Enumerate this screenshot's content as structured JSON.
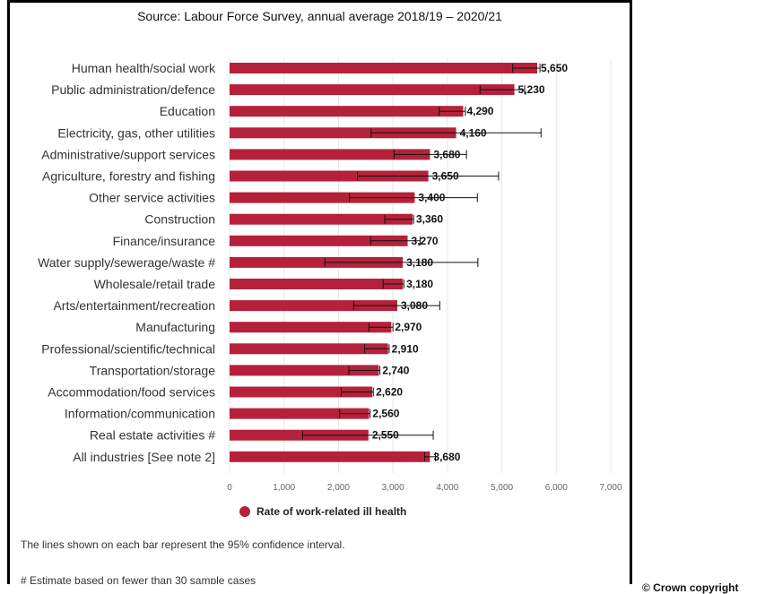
{
  "source_text": "Source: Labour Force Survey, annual average 2018/19 – 2020/21",
  "chart_data": {
    "type": "bar",
    "orientation": "horizontal",
    "categories": [
      "Human health/social work",
      "Public administration/defence",
      "Education",
      "Electricity, gas, other utilities",
      "Administrative/support services",
      "Agriculture, forestry and fishing",
      "Other service activities",
      "Construction",
      "Finance/insurance",
      "Water supply/sewerage/waste #",
      "Wholesale/retail trade",
      "Arts/entertainment/recreation",
      "Manufacturing",
      "Professional/scientific/technical",
      "Transportation/storage",
      "Accommodation/food services",
      "Information/communication",
      "Real estate activities #",
      "All industries [See note 2]"
    ],
    "series": [
      {
        "name": "Rate of work-related ill health",
        "color": "#b5213a",
        "values": [
          5650,
          5230,
          4290,
          4160,
          3680,
          3650,
          3400,
          3360,
          3270,
          3180,
          3180,
          3080,
          2970,
          2910,
          2740,
          2620,
          2560,
          2550,
          3680
        ],
        "value_labels": [
          "5,650",
          "5,230",
          "4,290",
          "4,160",
          "3,680",
          "3,650",
          "3,400",
          "3,360",
          "3,270",
          "3,180",
          "3,180",
          "3,080",
          "2,970",
          "2,910",
          "2,740",
          "2,620",
          "2,560",
          "2,550",
          "3,680"
        ],
        "ci_low": [
          5200,
          4600,
          3850,
          2600,
          3020,
          2350,
          2200,
          2850,
          2590,
          1750,
          2820,
          2280,
          2560,
          2480,
          2190,
          2050,
          2020,
          1340,
          3580
        ],
        "ci_high": [
          5700,
          5420,
          4330,
          5720,
          4350,
          4940,
          4550,
          3380,
          3500,
          4560,
          3200,
          3860,
          3000,
          2930,
          2760,
          2640,
          2580,
          3740,
          3780
        ]
      }
    ],
    "xlim": [
      0,
      7000
    ],
    "x_ticks": [
      "0",
      "1,000",
      "2,000",
      "3,000",
      "4,000",
      "5,000",
      "6,000",
      "7,000"
    ],
    "grid": true,
    "legend_position": "bottom"
  },
  "notes": {
    "ci_note": "The lines shown on each bar represent the 95% confidence interval.",
    "sample_note": "# Estimate based on fewer than 30 sample cases"
  },
  "copyright": "© Crown copyright"
}
